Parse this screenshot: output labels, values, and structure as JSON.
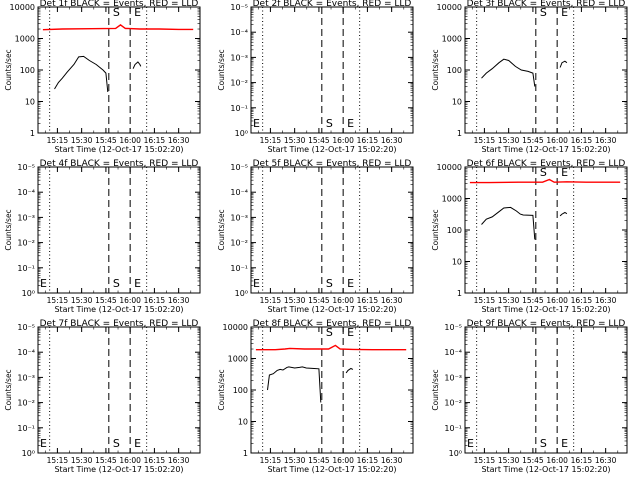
{
  "chart_data": [
    {
      "type": "line",
      "title": "Det 1f BLACK = Events, RED = LLD",
      "xlabel": "Start Time (12-Oct-17 15:02:20)",
      "ylabel": "Counts/sec",
      "x_tick_labels": [
        "15:15",
        "15:30",
        "15:45",
        "16:00",
        "16:15",
        "16:30"
      ],
      "y_scale": "log",
      "y_tick_labels": [
        "1",
        "10",
        "100",
        "1000",
        "10000"
      ],
      "annotations": [
        "S",
        "E"
      ],
      "series": [
        {
          "color": "#ff0000",
          "values": [
            [
              15.1,
              1900
            ],
            [
              15.3,
              2000
            ],
            [
              15.6,
              2050
            ],
            [
              15.85,
              2100
            ],
            [
              15.9,
              2700
            ],
            [
              15.95,
              2100
            ],
            [
              16.1,
              2000
            ],
            [
              16.3,
              2000
            ],
            [
              16.5,
              1950
            ],
            [
              16.65,
              1950
            ]
          ]
        },
        {
          "color": "#000000",
          "values": [
            [
              15.22,
              25
            ],
            [
              15.26,
              40
            ],
            [
              15.3,
              55
            ],
            [
              15.35,
              85
            ],
            [
              15.42,
              150
            ],
            [
              15.47,
              260
            ],
            [
              15.52,
              270
            ],
            [
              15.58,
              200
            ],
            [
              15.65,
              150
            ],
            [
              15.72,
              100
            ],
            [
              15.75,
              80
            ],
            [
              15.77,
              20
            ]
          ]
        },
        {
          "color": "#000000",
          "values": [
            [
              16.03,
              110
            ],
            [
              16.05,
              150
            ],
            [
              16.08,
              180
            ],
            [
              16.1,
              150
            ],
            [
              16.11,
              130
            ]
          ]
        }
      ]
    },
    {
      "type": "line",
      "title": "Det 2f BLACK = Events, RED = LLD",
      "xlabel": "Start Time (12-Oct-17 15:02:20)",
      "ylabel": "Counts/sec",
      "x_tick_labels": [
        "15:15",
        "15:30",
        "15:45",
        "16:00",
        "16:15",
        "16:30"
      ],
      "y_scale": "log",
      "y_tick_labels": [
        "10⁰",
        "10⁻¹",
        "10⁻²",
        "10⁻³",
        "10⁻⁴",
        "10⁻⁵"
      ],
      "annotations": [
        "S",
        "E"
      ],
      "series": []
    },
    {
      "type": "line",
      "title": "Det 3f BLACK = Events, RED = LLD",
      "xlabel": "Start Time (12-Oct-17 15:02:20)",
      "ylabel": "Counts/sec",
      "x_tick_labels": [
        "15:15",
        "15:30",
        "15:45",
        "16:00",
        "16:15",
        "16:30"
      ],
      "y_scale": "log",
      "y_tick_labels": [
        "1",
        "10",
        "100",
        "1000",
        "10000"
      ],
      "annotations": [
        "S",
        "E"
      ],
      "series": [
        {
          "color": "#000000",
          "values": [
            [
              15.22,
              55
            ],
            [
              15.27,
              80
            ],
            [
              15.33,
              110
            ],
            [
              15.4,
              170
            ],
            [
              15.45,
              220
            ],
            [
              15.5,
              200
            ],
            [
              15.57,
              130
            ],
            [
              15.63,
              100
            ],
            [
              15.7,
              90
            ],
            [
              15.75,
              80
            ],
            [
              15.77,
              30
            ]
          ]
        },
        {
          "color": "#000000",
          "values": [
            [
              16.03,
              120
            ],
            [
              16.05,
              170
            ],
            [
              16.08,
              190
            ],
            [
              16.1,
              170
            ]
          ]
        }
      ]
    },
    {
      "type": "line",
      "title": "Det 4f BLACK = Events, RED = LLD",
      "xlabel": "Start Time (12-Oct-17 15:02:20)",
      "ylabel": "Counts/sec",
      "x_tick_labels": [
        "15:15",
        "15:30",
        "15:45",
        "16:00",
        "16:15",
        "16:30"
      ],
      "y_scale": "log",
      "y_tick_labels": [
        "10⁰",
        "10⁻¹",
        "10⁻²",
        "10⁻³",
        "10⁻⁴",
        "10⁻⁵"
      ],
      "annotations": [
        "S",
        "E"
      ],
      "series": []
    },
    {
      "type": "line",
      "title": "Det 5f BLACK = Events, RED = LLD",
      "xlabel": "Start Time (12-Oct-17 15:02:20)",
      "ylabel": "Counts/sec",
      "x_tick_labels": [
        "15:15",
        "15:30",
        "15:45",
        "16:00",
        "16:15",
        "16:30"
      ],
      "y_scale": "log",
      "y_tick_labels": [
        "10⁰",
        "10⁻¹",
        "10⁻²",
        "10⁻³",
        "10⁻⁴",
        "10⁻⁵"
      ],
      "annotations": [
        "S",
        "E"
      ],
      "series": []
    },
    {
      "type": "line",
      "title": "Det 6f BLACK = Events, RED = LLD",
      "xlabel": "Start Time (12-Oct-17 15:02:20)",
      "ylabel": "Counts/sec",
      "x_tick_labels": [
        "15:15",
        "15:30",
        "15:45",
        "16:00",
        "16:15",
        "16:30"
      ],
      "y_scale": "log",
      "y_tick_labels": [
        "1",
        "10",
        "100",
        "1000",
        "10000"
      ],
      "annotations": [
        "S",
        "E"
      ],
      "series": [
        {
          "color": "#ff0000",
          "values": [
            [
              15.1,
              3200
            ],
            [
              15.3,
              3200
            ],
            [
              15.6,
              3300
            ],
            [
              15.85,
              3300
            ],
            [
              15.92,
              4000
            ],
            [
              15.97,
              3300
            ],
            [
              16.1,
              3400
            ],
            [
              16.3,
              3300
            ],
            [
              16.5,
              3300
            ],
            [
              16.65,
              3300
            ]
          ]
        },
        {
          "color": "#000000",
          "values": [
            [
              15.22,
              150
            ],
            [
              15.27,
              220
            ],
            [
              15.33,
              260
            ],
            [
              15.4,
              380
            ],
            [
              15.45,
              500
            ],
            [
              15.52,
              520
            ],
            [
              15.58,
              400
            ],
            [
              15.62,
              320
            ],
            [
              15.65,
              300
            ],
            [
              15.75,
              290
            ],
            [
              15.77,
              50
            ]
          ]
        },
        {
          "color": "#000000",
          "values": [
            [
              16.03,
              280
            ],
            [
              16.05,
              320
            ],
            [
              16.08,
              360
            ],
            [
              16.1,
              330
            ]
          ]
        }
      ]
    },
    {
      "type": "line",
      "title": "Det 7f BLACK = Events, RED = LLD",
      "xlabel": "Start Time (12-Oct-17 15:02:20)",
      "ylabel": "Counts/sec",
      "x_tick_labels": [
        "15:15",
        "15:30",
        "15:45",
        "16:00",
        "16:15",
        "16:30"
      ],
      "y_scale": "log",
      "y_tick_labels": [
        "10⁰",
        "10⁻¹",
        "10⁻²",
        "10⁻³",
        "10⁻⁴",
        "10⁻⁵"
      ],
      "annotations": [
        "S",
        "E"
      ],
      "series": []
    },
    {
      "type": "line",
      "title": "Det 8f BLACK = Events, RED = LLD",
      "xlabel": "Start Time (12-Oct-17 15:02:20)",
      "ylabel": "Counts/sec",
      "x_tick_labels": [
        "15:15",
        "15:30",
        "15:45",
        "16:00",
        "16:15",
        "16:30"
      ],
      "y_scale": "log",
      "y_tick_labels": [
        "1",
        "10",
        "100",
        "1000",
        "10000"
      ],
      "annotations": [
        "S",
        "E"
      ],
      "series": [
        {
          "color": "#ff0000",
          "values": [
            [
              15.1,
              1900
            ],
            [
              15.3,
              1900
            ],
            [
              15.4,
              2000
            ],
            [
              15.45,
              2100
            ],
            [
              15.6,
              2000
            ],
            [
              15.85,
              2000
            ],
            [
              15.92,
              2600
            ],
            [
              15.97,
              2000
            ],
            [
              16.1,
              1950
            ],
            [
              16.3,
              1900
            ],
            [
              16.5,
              1900
            ],
            [
              16.65,
              1900
            ]
          ]
        },
        {
          "color": "#000000",
          "values": [
            [
              15.22,
              100
            ],
            [
              15.24,
              300
            ],
            [
              15.28,
              330
            ],
            [
              15.32,
              420
            ],
            [
              15.35,
              450
            ],
            [
              15.38,
              430
            ],
            [
              15.42,
              520
            ],
            [
              15.44,
              540
            ],
            [
              15.5,
              500
            ],
            [
              15.55,
              520
            ],
            [
              15.58,
              540
            ],
            [
              15.62,
              500
            ],
            [
              15.7,
              480
            ],
            [
              15.75,
              470
            ],
            [
              15.77,
              40
            ]
          ]
        },
        {
          "color": "#000000",
          "values": [
            [
              16.03,
              350
            ],
            [
              16.05,
              420
            ],
            [
              16.08,
              480
            ],
            [
              16.1,
              450
            ]
          ]
        }
      ]
    },
    {
      "type": "line",
      "title": "Det 9f BLACK = Events, RED = LLD",
      "xlabel": "Start Time (12-Oct-17 15:02:20)",
      "ylabel": "Counts/sec",
      "x_tick_labels": [
        "15:15",
        "15:30",
        "15:45",
        "16:00",
        "16:15",
        "16:30"
      ],
      "y_scale": "log",
      "y_tick_labels": [
        "10⁰",
        "10⁻¹",
        "10⁻²",
        "10⁻³",
        "10⁻⁴",
        "10⁻⁵"
      ],
      "annotations": [
        "S",
        "E"
      ],
      "series": []
    }
  ]
}
